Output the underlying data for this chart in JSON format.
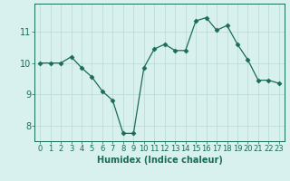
{
  "xlabel": "Humidex (Indice chaleur)",
  "ylabel": "",
  "x": [
    0,
    1,
    2,
    3,
    4,
    5,
    6,
    7,
    8,
    9,
    10,
    11,
    12,
    13,
    14,
    15,
    16,
    17,
    18,
    19,
    20,
    21,
    22,
    23
  ],
  "y": [
    10.0,
    10.0,
    10.0,
    10.2,
    9.85,
    9.55,
    9.1,
    8.8,
    7.75,
    7.75,
    9.85,
    10.45,
    10.6,
    10.4,
    10.4,
    11.35,
    11.45,
    11.05,
    11.2,
    10.6,
    10.1,
    9.45,
    9.45,
    9.35
  ],
  "line_color": "#1a6b5a",
  "marker": "D",
  "marker_size": 2.5,
  "background_color": "#d8f0ee",
  "grid_color": "#b8d8d4",
  "ylim": [
    7.5,
    11.9
  ],
  "xlim": [
    -0.5,
    23.5
  ],
  "yticks": [
    8,
    9,
    10,
    11
  ],
  "xticks": [
    0,
    1,
    2,
    3,
    4,
    5,
    6,
    7,
    8,
    9,
    10,
    11,
    12,
    13,
    14,
    15,
    16,
    17,
    18,
    19,
    20,
    21,
    22,
    23
  ],
  "tick_color": "#1a6b5a",
  "label_color": "#1a6b5a",
  "xlabel_fontsize": 7,
  "tick_fontsize": 6,
  "ytick_fontsize": 7
}
